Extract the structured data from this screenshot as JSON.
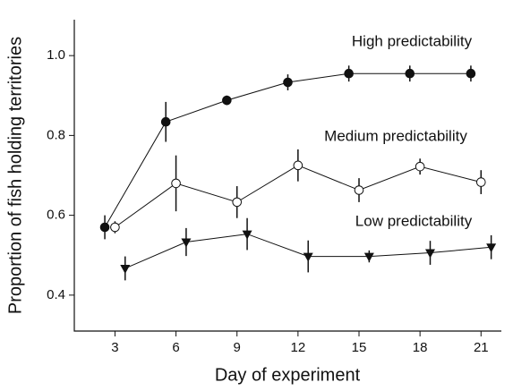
{
  "chart_data": {
    "type": "line",
    "x_label": "Day of experiment",
    "y_label": "Proportion of fish holding territories",
    "xlim": [
      1,
      22
    ],
    "xticks": [
      3,
      6,
      9,
      12,
      15,
      18,
      21
    ],
    "ylim": [
      0.31,
      1.09
    ],
    "yticks": [
      0.4,
      0.6,
      0.8,
      {
        "value": 1.0,
        "label": "1.0"
      }
    ],
    "series": [
      {
        "name": "High predictability",
        "color": "#111111",
        "marker": "filled-circle",
        "x": [
          2.5,
          5.5,
          8.5,
          11.5,
          14.5,
          17.5,
          20.5
        ],
        "values": [
          0.57,
          0.834,
          0.888,
          0.933,
          0.955,
          0.955,
          0.955
        ],
        "errors": [
          0.03,
          0.05,
          0.012,
          0.02,
          0.02,
          0.02,
          0.02
        ]
      },
      {
        "name": "Medium predictability",
        "color": "#111111",
        "marker": "open-circle",
        "x": [
          3,
          6,
          9,
          12,
          15,
          18,
          21
        ],
        "values": [
          0.57,
          0.68,
          0.633,
          0.725,
          0.663,
          0.722,
          0.683
        ],
        "errors": [
          0.015,
          0.07,
          0.04,
          0.04,
          0.03,
          0.02,
          0.03
        ]
      },
      {
        "name": "Low predictability",
        "color": "#111111",
        "marker": "filled-triangle-down",
        "x": [
          3.5,
          6.5,
          9.5,
          12.5,
          15.5,
          18.5,
          21.5
        ],
        "values": [
          0.467,
          0.533,
          0.553,
          0.497,
          0.497,
          0.506,
          0.52
        ],
        "errors": [
          0.03,
          0.035,
          0.04,
          0.04,
          0.015,
          0.03,
          0.03
        ]
      }
    ]
  }
}
